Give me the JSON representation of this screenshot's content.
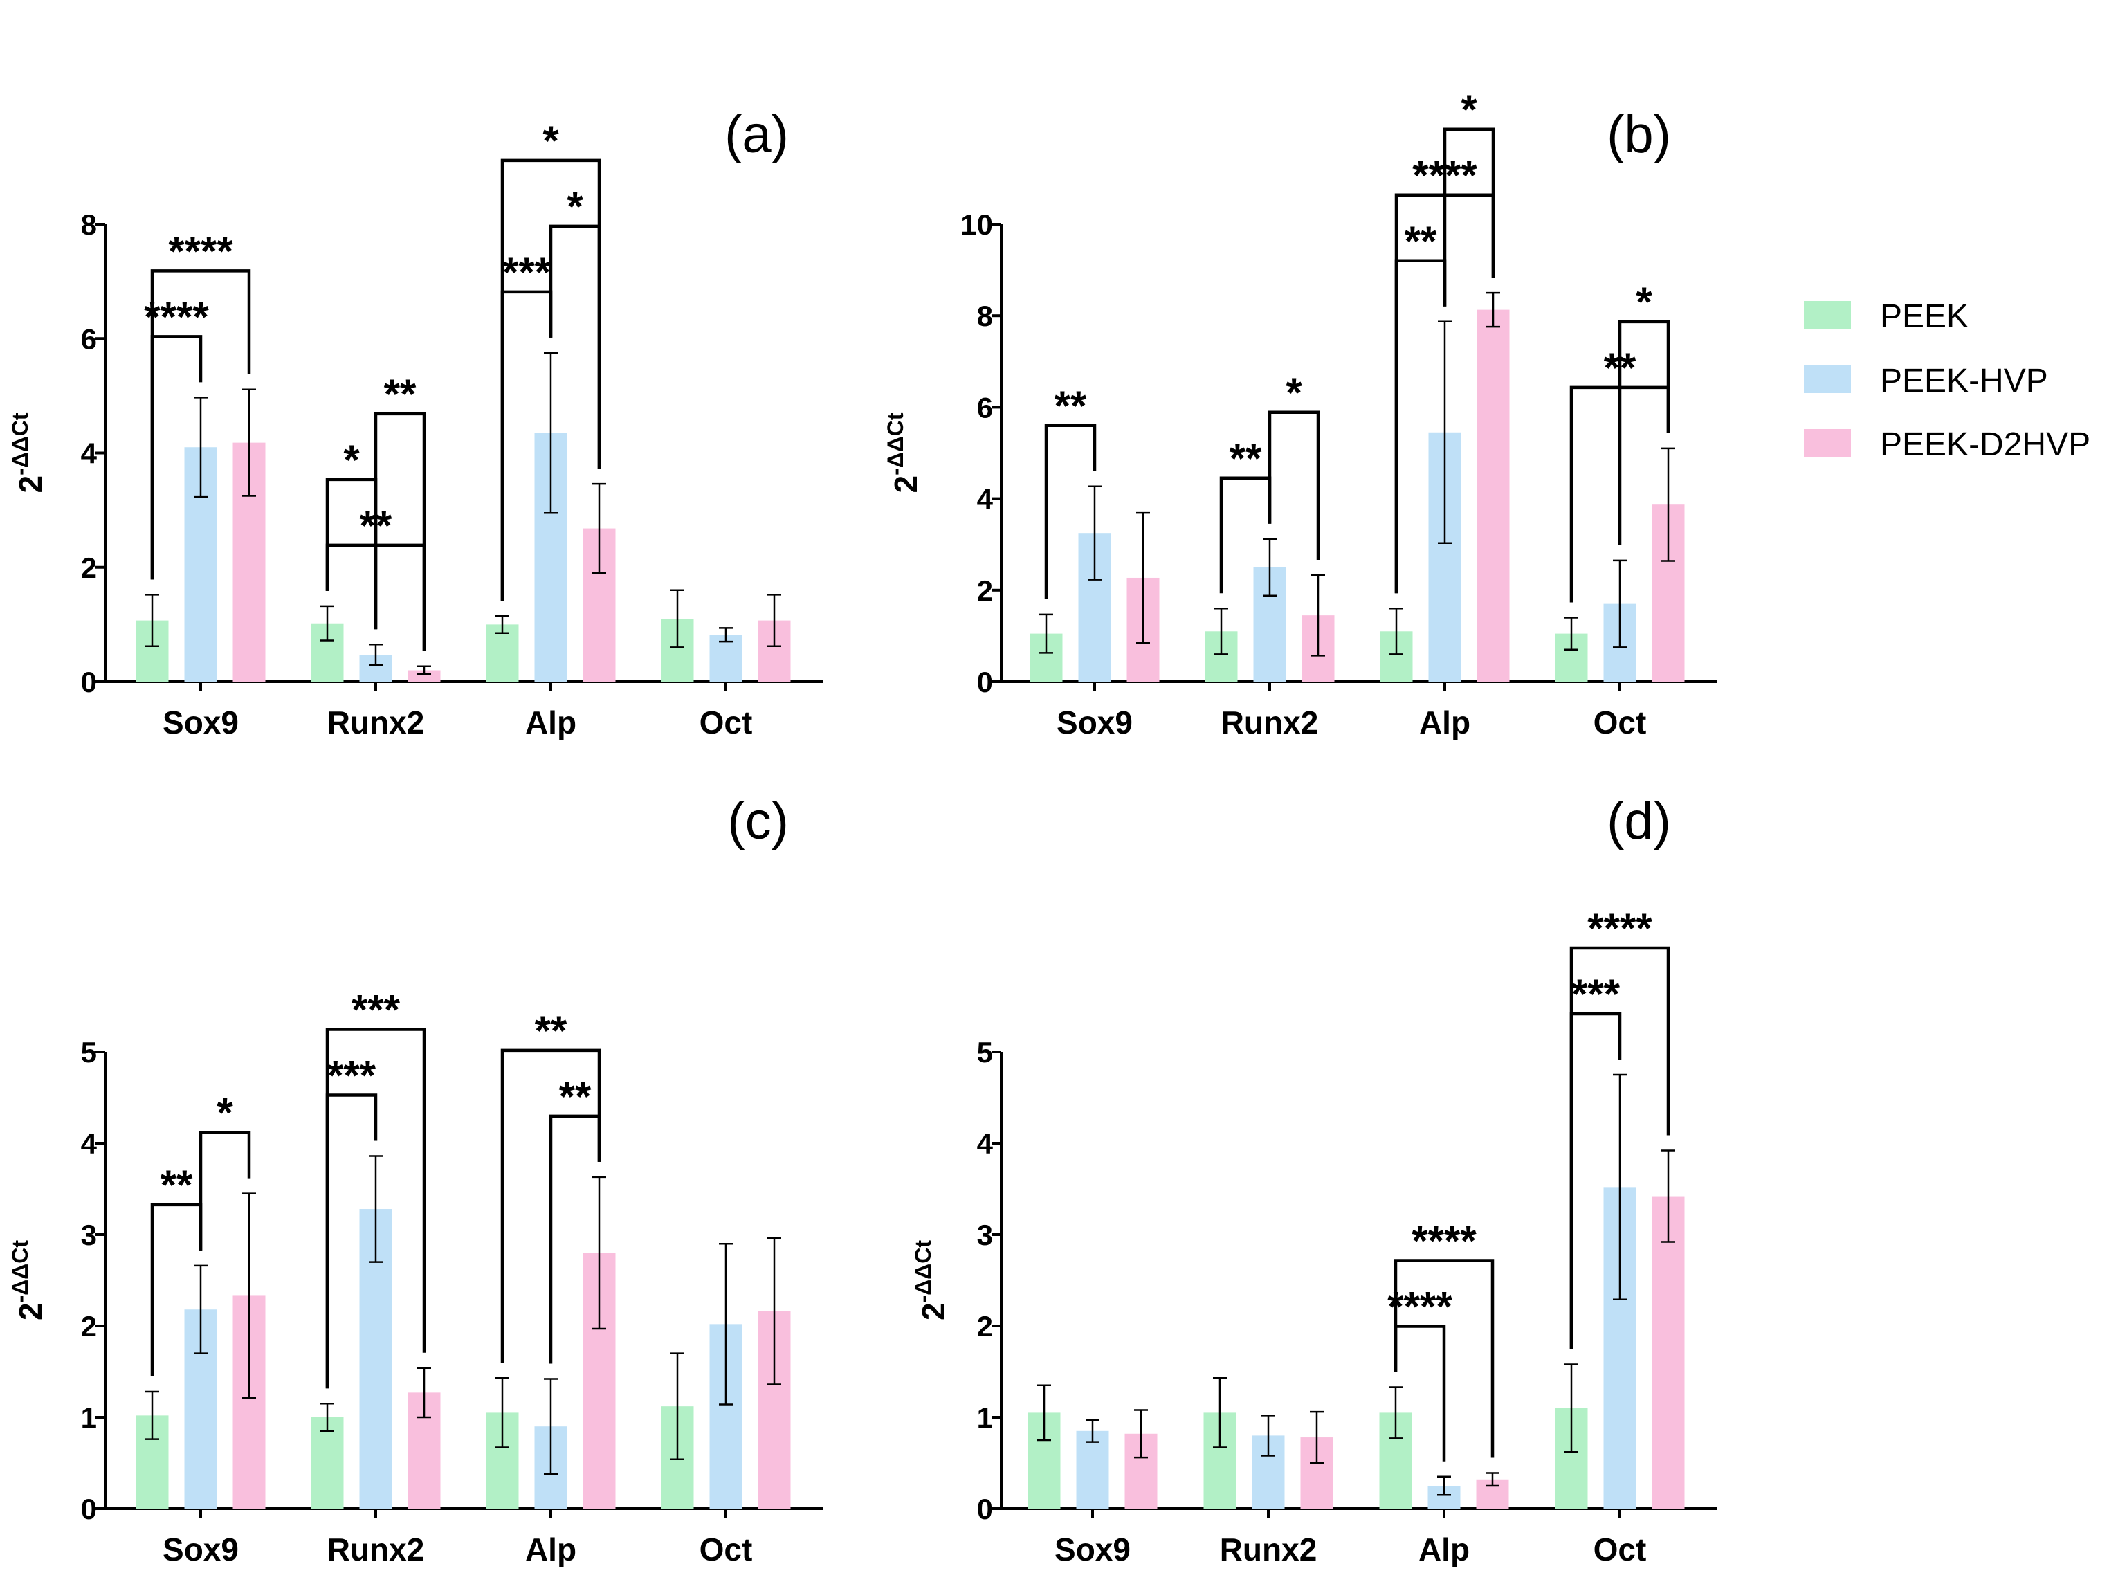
{
  "legend": [
    {
      "label": "PEEK",
      "color": "#B2F0C6"
    },
    {
      "label": "PEEK-HVP",
      "color": "#BFE0F7"
    },
    {
      "label": "PEEK-D2HVP",
      "color": "#F9BFDD"
    }
  ],
  "chart_data": [
    {
      "type": "bar",
      "panel_label": "(a)",
      "ylabel_base": "2",
      "ylabel_exp": "-ΔΔCt",
      "categories": [
        "Sox9",
        "Runx2",
        "Alp",
        "Oct"
      ],
      "ylim": [
        0,
        8
      ],
      "yticks": [
        0,
        2,
        4,
        6,
        8
      ],
      "series": [
        {
          "name": "PEEK",
          "values": [
            1.07,
            1.02,
            1.0,
            1.1
          ],
          "errors": [
            0.45,
            0.3,
            0.15,
            0.5
          ]
        },
        {
          "name": "PEEK-HVP",
          "values": [
            4.1,
            0.47,
            4.35,
            0.82
          ],
          "errors": [
            0.87,
            0.18,
            1.4,
            0.12
          ]
        },
        {
          "name": "PEEK-D2HVP",
          "values": [
            4.18,
            0.2,
            2.68,
            1.07
          ],
          "errors": [
            0.93,
            0.07,
            0.78,
            0.45
          ]
        }
      ],
      "significance": [
        {
          "cat": 0,
          "from": 0,
          "to": 1,
          "label": "****"
        },
        {
          "cat": 0,
          "from": 0,
          "to": 2,
          "label": "****"
        },
        {
          "cat": 1,
          "from": 0,
          "to": 2,
          "label": "**"
        },
        {
          "cat": 1,
          "from": 0,
          "to": 1,
          "label": "*"
        },
        {
          "cat": 1,
          "from": 1,
          "to": 2,
          "label": "**"
        },
        {
          "cat": 2,
          "from": 0,
          "to": 1,
          "label": "***"
        },
        {
          "cat": 2,
          "from": 1,
          "to": 2,
          "label": "*"
        },
        {
          "cat": 2,
          "from": 0,
          "to": 2,
          "label": "*"
        }
      ]
    },
    {
      "type": "bar",
      "panel_label": "(b)",
      "ylabel_base": "2",
      "ylabel_exp": "-ΔΔCt",
      "categories": [
        "Sox9",
        "Runx2",
        "Alp",
        "Oct"
      ],
      "ylim": [
        0,
        10
      ],
      "yticks": [
        0,
        2,
        4,
        6,
        8,
        10
      ],
      "series": [
        {
          "name": "PEEK",
          "values": [
            1.05,
            1.1,
            1.1,
            1.05
          ],
          "errors": [
            0.42,
            0.5,
            0.5,
            0.35
          ]
        },
        {
          "name": "PEEK-HVP",
          "values": [
            3.25,
            2.5,
            5.45,
            1.7
          ],
          "errors": [
            1.02,
            0.62,
            2.42,
            0.95
          ]
        },
        {
          "name": "PEEK-D2HVP",
          "values": [
            2.27,
            1.45,
            8.13,
            3.87
          ],
          "errors": [
            1.42,
            0.88,
            0.37,
            1.23
          ]
        }
      ],
      "significance": [
        {
          "cat": 0,
          "from": 0,
          "to": 1,
          "label": "**"
        },
        {
          "cat": 1,
          "from": 0,
          "to": 1,
          "label": "**"
        },
        {
          "cat": 1,
          "from": 1,
          "to": 2,
          "label": "*"
        },
        {
          "cat": 2,
          "from": 0,
          "to": 1,
          "label": "**"
        },
        {
          "cat": 2,
          "from": 0,
          "to": 2,
          "label": "****"
        },
        {
          "cat": 2,
          "from": 1,
          "to": 2,
          "label": "*"
        },
        {
          "cat": 3,
          "from": 0,
          "to": 2,
          "label": "**"
        },
        {
          "cat": 3,
          "from": 1,
          "to": 2,
          "label": "*"
        }
      ]
    },
    {
      "type": "bar",
      "panel_label": "(c)",
      "ylabel_base": "2",
      "ylabel_exp": "-ΔΔCt",
      "categories": [
        "Sox9",
        "Runx2",
        "Alp",
        "Oct"
      ],
      "ylim": [
        0,
        5
      ],
      "yticks": [
        0,
        1,
        2,
        3,
        4,
        5
      ],
      "series": [
        {
          "name": "PEEK",
          "values": [
            1.02,
            1.0,
            1.05,
            1.12
          ],
          "errors": [
            0.26,
            0.15,
            0.38,
            0.58
          ]
        },
        {
          "name": "PEEK-HVP",
          "values": [
            2.18,
            3.28,
            0.9,
            2.02
          ],
          "errors": [
            0.48,
            0.58,
            0.52,
            0.88
          ]
        },
        {
          "name": "PEEK-D2HVP",
          "values": [
            2.33,
            1.27,
            2.8,
            2.16
          ],
          "errors": [
            1.12,
            0.27,
            0.83,
            0.8
          ]
        }
      ],
      "significance": [
        {
          "cat": 0,
          "from": 0,
          "to": 1,
          "label": "**"
        },
        {
          "cat": 0,
          "from": 1,
          "to": 2,
          "label": "*"
        },
        {
          "cat": 1,
          "from": 0,
          "to": 1,
          "label": "***"
        },
        {
          "cat": 1,
          "from": 0,
          "to": 2,
          "label": "***"
        },
        {
          "cat": 2,
          "from": 1,
          "to": 2,
          "label": "**"
        },
        {
          "cat": 2,
          "from": 0,
          "to": 2,
          "label": "**"
        }
      ]
    },
    {
      "type": "bar",
      "panel_label": "(d)",
      "ylabel_base": "2",
      "ylabel_exp": "-ΔΔCt",
      "categories": [
        "Sox9",
        "Runx2",
        "Alp",
        "Oct"
      ],
      "ylim": [
        0,
        5
      ],
      "yticks": [
        0,
        1,
        2,
        3,
        4,
        5
      ],
      "series": [
        {
          "name": "PEEK",
          "values": [
            1.05,
            1.05,
            1.05,
            1.1
          ],
          "errors": [
            0.3,
            0.38,
            0.28,
            0.48
          ]
        },
        {
          "name": "PEEK-HVP",
          "values": [
            0.85,
            0.8,
            0.25,
            3.52
          ],
          "errors": [
            0.12,
            0.22,
            0.1,
            1.23
          ]
        },
        {
          "name": "PEEK-D2HVP",
          "values": [
            0.82,
            0.78,
            0.32,
            3.42
          ],
          "errors": [
            0.26,
            0.28,
            0.07,
            0.5
          ]
        }
      ],
      "significance": [
        {
          "cat": 2,
          "from": 0,
          "to": 1,
          "label": "****"
        },
        {
          "cat": 2,
          "from": 0,
          "to": 2,
          "label": "****"
        },
        {
          "cat": 3,
          "from": 0,
          "to": 1,
          "label": "***"
        },
        {
          "cat": 3,
          "from": 0,
          "to": 2,
          "label": "****"
        }
      ]
    }
  ]
}
